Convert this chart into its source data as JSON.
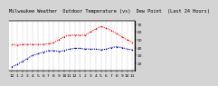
{
  "title": "Milwaukee Weather  Outdoor Temperature (vs)  Dew Point  (Last 24 Hours)",
  "bg_color": "#d4d4d4",
  "plot_bg": "#ffffff",
  "temp_color": "#ff0000",
  "dew_color": "#0000cc",
  "grid_color": "#aaaaaa",
  "ylim": [
    10,
    75
  ],
  "temp_values": [
    44,
    43,
    44,
    44,
    44,
    44,
    44,
    45,
    46,
    50,
    54,
    56,
    56,
    56,
    56,
    60,
    64,
    67,
    65,
    62,
    58,
    54,
    50,
    47
  ],
  "dew_values": [
    15,
    18,
    22,
    26,
    30,
    32,
    34,
    36,
    36,
    35,
    36,
    38,
    39,
    39,
    38,
    38,
    38,
    37,
    38,
    40,
    41,
    40,
    38,
    37
  ],
  "x_labels": [
    "12",
    "1",
    "2",
    "3",
    "4",
    "5",
    "6",
    "7",
    "8",
    "9",
    "10",
    "11",
    "12",
    "1",
    "2",
    "3",
    "4",
    "5",
    "6",
    "7",
    "8",
    "9",
    "10",
    "11"
  ],
  "yticks_right": [
    20,
    30,
    40,
    50,
    60,
    70
  ],
  "title_fontsize": 3.8,
  "tick_fontsize": 3.2,
  "linewidth": 0.8,
  "marker": ".",
  "marker_size": 2.0,
  "linestyle": "dotted"
}
